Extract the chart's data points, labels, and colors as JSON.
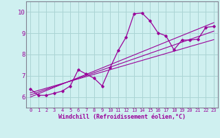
{
  "xlabel": "Windchill (Refroidissement éolien,°C)",
  "background_color": "#cff0f0",
  "grid_color": "#aad4d4",
  "line_color": "#990099",
  "spine_color": "#808090",
  "xlim": [
    -0.5,
    23.5
  ],
  "ylim": [
    5.5,
    10.5
  ],
  "xticks": [
    0,
    1,
    2,
    3,
    4,
    5,
    6,
    7,
    8,
    9,
    10,
    11,
    12,
    13,
    14,
    15,
    16,
    17,
    18,
    19,
    20,
    21,
    22,
    23
  ],
  "yticks": [
    6,
    7,
    8,
    9,
    10
  ],
  "main_x": [
    0,
    1,
    2,
    3,
    4,
    5,
    6,
    7,
    8,
    9,
    10,
    11,
    12,
    13,
    14,
    15,
    16,
    17,
    18,
    19,
    20,
    21,
    22,
    23
  ],
  "main_y": [
    6.38,
    6.08,
    6.08,
    6.18,
    6.28,
    6.52,
    7.28,
    7.08,
    6.88,
    6.52,
    7.38,
    8.18,
    8.82,
    9.92,
    9.95,
    9.58,
    9.02,
    8.88,
    8.22,
    8.68,
    8.68,
    8.72,
    9.28,
    9.32
  ],
  "reg_lines": [
    {
      "x0": 0,
      "y0": 6.0,
      "x1": 23,
      "y1": 9.5
    },
    {
      "x0": 0,
      "y0": 6.1,
      "x1": 23,
      "y1": 9.1
    },
    {
      "x0": 0,
      "y0": 6.2,
      "x1": 23,
      "y1": 8.7
    }
  ]
}
